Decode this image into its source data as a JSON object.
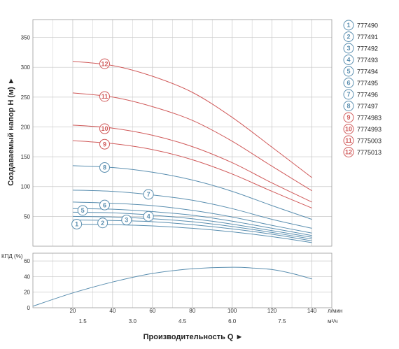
{
  "chart_data": [
    {
      "type": "line",
      "id": "head",
      "ylabel": "Создаваемый напор H (м) ►",
      "ylim": [
        0,
        380
      ],
      "yticks": [
        0,
        50,
        100,
        150,
        200,
        250,
        300,
        350
      ],
      "xlim": [
        0,
        150
      ],
      "grid": true,
      "series": [
        {
          "name": "777490",
          "badge": "1",
          "color": "#5b8fb0",
          "label_x": 22,
          "label_y": 37,
          "x": [
            20,
            40,
            60,
            80,
            100,
            120,
            140
          ],
          "y": [
            37,
            36,
            34,
            30,
            24,
            16,
            6
          ]
        },
        {
          "name": "777491",
          "badge": "2",
          "color": "#5b8fb0",
          "label_x": 35,
          "label_y": 39,
          "x": [
            20,
            40,
            60,
            80,
            100,
            120,
            140
          ],
          "y": [
            44,
            43,
            41,
            36,
            29,
            20,
            9
          ]
        },
        {
          "name": "777492",
          "badge": "3",
          "color": "#5b8fb0",
          "label_x": 47,
          "label_y": 44,
          "x": [
            20,
            40,
            60,
            80,
            100,
            120,
            140
          ],
          "y": [
            50,
            49,
            46,
            41,
            33,
            23,
            12
          ]
        },
        {
          "name": "777493",
          "badge": "4",
          "color": "#5b8fb0",
          "label_x": 58,
          "label_y": 50,
          "x": [
            20,
            40,
            60,
            80,
            100,
            120,
            140
          ],
          "y": [
            57,
            56,
            52,
            46,
            37,
            26,
            15
          ]
        },
        {
          "name": "777494",
          "badge": "5",
          "color": "#5b8fb0",
          "label_x": 25,
          "label_y": 60,
          "x": [
            20,
            40,
            60,
            80,
            100,
            120,
            140
          ],
          "y": [
            63,
            62,
            58,
            52,
            42,
            30,
            18
          ]
        },
        {
          "name": "777495",
          "badge": "6",
          "color": "#5b8fb0",
          "label_x": 36,
          "label_y": 69,
          "x": [
            20,
            40,
            60,
            80,
            100,
            120,
            140
          ],
          "y": [
            74,
            72,
            68,
            60,
            49,
            35,
            22
          ]
        },
        {
          "name": "777496",
          "badge": "7",
          "color": "#5b8fb0",
          "label_x": 58,
          "label_y": 87,
          "x": [
            20,
            40,
            60,
            80,
            100,
            120,
            140
          ],
          "y": [
            94,
            92,
            86,
            77,
            63,
            45,
            30
          ]
        },
        {
          "name": "777497",
          "badge": "8",
          "color": "#5b8fb0",
          "label_x": 36,
          "label_y": 132,
          "x": [
            20,
            40,
            60,
            80,
            100,
            120,
            140
          ],
          "y": [
            135,
            132,
            124,
            111,
            92,
            68,
            45
          ]
        },
        {
          "name": "7774983",
          "badge": "9",
          "color": "#d05a5a",
          "label_x": 36,
          "label_y": 171,
          "x": [
            20,
            40,
            60,
            80,
            100,
            120,
            140
          ],
          "y": [
            177,
            172,
            162,
            145,
            121,
            92,
            64
          ]
        },
        {
          "name": "7774993",
          "badge": "10",
          "color": "#d05a5a",
          "label_x": 36,
          "label_y": 197,
          "x": [
            20,
            40,
            60,
            80,
            100,
            120,
            140
          ],
          "y": [
            203,
            198,
            186,
            167,
            140,
            106,
            74
          ]
        },
        {
          "name": "7775003",
          "badge": "11",
          "color": "#d05a5a",
          "label_x": 36,
          "label_y": 251,
          "x": [
            20,
            40,
            60,
            80,
            100,
            120,
            140
          ],
          "y": [
            257,
            250,
            234,
            211,
            176,
            134,
            93
          ]
        },
        {
          "name": "7775013",
          "badge": "12",
          "color": "#d05a5a",
          "label_x": 36,
          "label_y": 306,
          "x": [
            20,
            40,
            60,
            80,
            100,
            120,
            140
          ],
          "y": [
            310,
            303,
            285,
            258,
            216,
            166,
            115
          ]
        }
      ]
    },
    {
      "type": "line",
      "id": "efficiency",
      "ylabel": "КПД (%)",
      "ylim": [
        0,
        70
      ],
      "yticks": [
        0,
        20,
        40,
        60
      ],
      "xlim": [
        0,
        150
      ],
      "grid": true,
      "series": [
        {
          "color": "#5b8fb0",
          "x": [
            0,
            20,
            40,
            60,
            80,
            100,
            110,
            120,
            130,
            140
          ],
          "y": [
            2,
            19,
            33,
            44,
            50,
            52,
            51,
            49,
            44,
            37
          ]
        }
      ],
      "xticks": [
        20,
        40,
        60,
        80,
        100,
        120,
        140
      ],
      "xtick_labels": [
        "20",
        "40",
        "60",
        "80",
        "100",
        "120",
        "140"
      ],
      "x_unit": "л/мин",
      "x2ticks": [
        1.5,
        3.0,
        4.5,
        6.0,
        7.5
      ],
      "x2tick_labels": [
        "1.5",
        "3.0",
        "4.5",
        "6.0",
        "7.5"
      ],
      "x2_unit": "м³/ч",
      "xlabel": "Производительность Q ►"
    }
  ]
}
